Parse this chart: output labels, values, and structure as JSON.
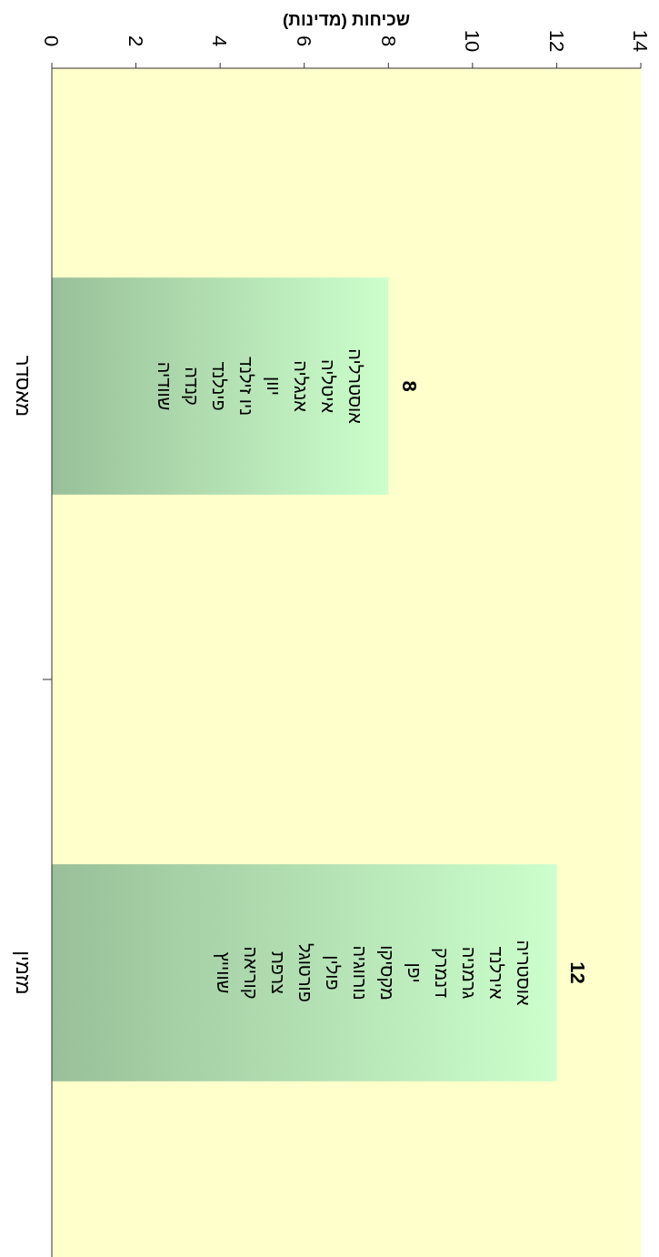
{
  "chart_data": {
    "type": "bar",
    "orientation": "horizontal",
    "xlabel": "שכיחות (מדינות)",
    "categories": [
      "מאסדר",
      "מזמין"
    ],
    "values": [
      8,
      12
    ],
    "color": "#ccffcc",
    "xlim": [
      0,
      14
    ],
    "xticks": [
      0,
      2,
      4,
      6,
      8,
      10,
      12,
      14
    ],
    "data_labels": true,
    "annotations": [
      "אוסטרליה",
      "איטליה",
      "אנגליה",
      "יוון",
      "ניו זילנד",
      "פינלנד",
      "קנדה",
      "שוודיה",
      "אוסטריה",
      "אירלנד",
      "גרמניה",
      "דנמרק",
      "יפן",
      "מקסיקו",
      "נורווגיה",
      "פולין",
      "פורטוגל",
      "צרפת",
      "קוריאה",
      "שווייץ"
    ]
  }
}
